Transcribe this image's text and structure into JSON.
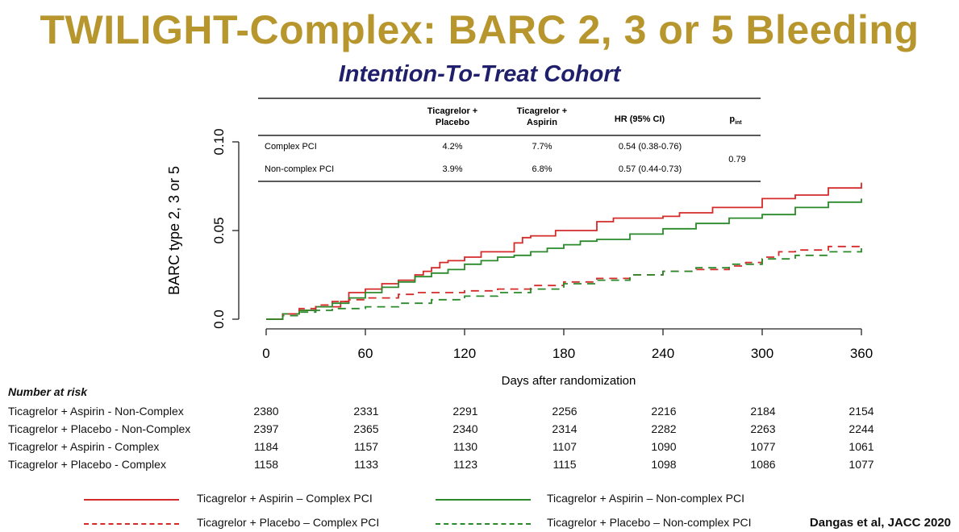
{
  "title": "TWILIGHT-Complex: BARC 2, 3 or 5 Bleeding",
  "subtitle": "Intention-To-Treat Cohort",
  "chart_data": {
    "type": "line",
    "xlabel": "Days after randomization",
    "ylabel": "BARC type 2, 3 or 5",
    "xlim": [
      0,
      370
    ],
    "ylim": [
      0,
      0.1
    ],
    "xticks": [
      0,
      60,
      120,
      180,
      240,
      300,
      360
    ],
    "yticks": [
      0.0,
      0.05,
      0.1
    ],
    "ytick_labels": [
      "0.0",
      "0.05",
      "0.10"
    ],
    "series": [
      {
        "name": "Ticagrelor + Aspirin – Complex PCI",
        "color": "#d42a2a",
        "dash": "solid",
        "x": [
          0,
          10,
          20,
          30,
          45,
          50,
          60,
          70,
          80,
          90,
          95,
          100,
          105,
          110,
          120,
          130,
          150,
          155,
          160,
          175,
          180,
          200,
          210,
          240,
          250,
          270,
          300,
          320,
          340,
          360
        ],
        "y": [
          0,
          0.003,
          0.005,
          0.007,
          0.01,
          0.015,
          0.017,
          0.02,
          0.022,
          0.025,
          0.027,
          0.029,
          0.032,
          0.033,
          0.035,
          0.038,
          0.043,
          0.046,
          0.047,
          0.05,
          0.05,
          0.055,
          0.057,
          0.058,
          0.06,
          0.063,
          0.068,
          0.07,
          0.074,
          0.077
        ]
      },
      {
        "name": "Ticagrelor + Aspirin – Non-complex PCI",
        "color": "#2a8a2a",
        "dash": "solid",
        "x": [
          0,
          10,
          20,
          30,
          40,
          50,
          60,
          70,
          80,
          90,
          100,
          110,
          120,
          130,
          140,
          150,
          160,
          170,
          180,
          190,
          200,
          220,
          240,
          260,
          280,
          300,
          320,
          340,
          360
        ],
        "y": [
          0,
          0.003,
          0.005,
          0.007,
          0.009,
          0.012,
          0.015,
          0.018,
          0.021,
          0.024,
          0.026,
          0.028,
          0.031,
          0.033,
          0.035,
          0.036,
          0.038,
          0.04,
          0.042,
          0.044,
          0.045,
          0.048,
          0.051,
          0.054,
          0.057,
          0.059,
          0.063,
          0.066,
          0.068
        ]
      },
      {
        "name": "Ticagrelor + Placebo – Complex PCI",
        "color": "#d42a2a",
        "dash": "dashed",
        "x": [
          0,
          10,
          20,
          30,
          40,
          50,
          60,
          80,
          90,
          100,
          120,
          140,
          160,
          180,
          200,
          220,
          240,
          260,
          280,
          290,
          300,
          310,
          320,
          340,
          360
        ],
        "y": [
          0,
          0.003,
          0.006,
          0.008,
          0.01,
          0.011,
          0.012,
          0.014,
          0.015,
          0.015,
          0.016,
          0.017,
          0.019,
          0.021,
          0.023,
          0.025,
          0.027,
          0.028,
          0.03,
          0.032,
          0.035,
          0.038,
          0.039,
          0.041,
          0.042
        ]
      },
      {
        "name": "Ticagrelor + Placebo – Non-complex PCI",
        "color": "#2a8a2a",
        "dash": "dashed",
        "x": [
          0,
          10,
          20,
          30,
          40,
          50,
          60,
          80,
          100,
          120,
          140,
          160,
          180,
          200,
          220,
          240,
          260,
          280,
          300,
          320,
          340,
          360
        ],
        "y": [
          0,
          0.002,
          0.004,
          0.005,
          0.006,
          0.006,
          0.007,
          0.009,
          0.011,
          0.013,
          0.015,
          0.017,
          0.02,
          0.022,
          0.025,
          0.027,
          0.029,
          0.031,
          0.034,
          0.036,
          0.038,
          0.04
        ]
      }
    ],
    "table": {
      "headers": [
        "Ticagrelor + Placebo",
        "Ticagrelor + Aspirin",
        "HR  (95% CI)",
        "p"
      ],
      "p_sub": "int",
      "rows": [
        {
          "label": "Complex PCI",
          "placebo": "4.2%",
          "aspirin": "7.7%",
          "hr": "0.54 (0.38-0.76)"
        },
        {
          "label": "Non-complex PCI",
          "placebo": "3.9%",
          "aspirin": "6.8%",
          "hr": "0.57 (0.44-0.73)"
        }
      ],
      "p_value": "0.79"
    }
  },
  "risk_table": {
    "header": "Number at risk",
    "rows": [
      {
        "label": "Ticagrelor + Aspirin - Non-Complex",
        "values": [
          "2380",
          "2331",
          "2291",
          "2256",
          "2216",
          "2184",
          "2154"
        ]
      },
      {
        "label": "Ticagrelor + Placebo - Non-Complex",
        "values": [
          "2397",
          "2365",
          "2340",
          "2314",
          "2282",
          "2263",
          "2244"
        ]
      },
      {
        "label": "Ticagrelor + Aspirin - Complex",
        "values": [
          "1184",
          "1157",
          "1130",
          "1107",
          "1090",
          "1077",
          "1061"
        ]
      },
      {
        "label": "Ticagrelor + Placebo - Complex",
        "values": [
          "1158",
          "1133",
          "1123",
          "1115",
          "1098",
          "1086",
          "1077"
        ]
      }
    ]
  },
  "credit": "Dangas et al, JACC 2020"
}
